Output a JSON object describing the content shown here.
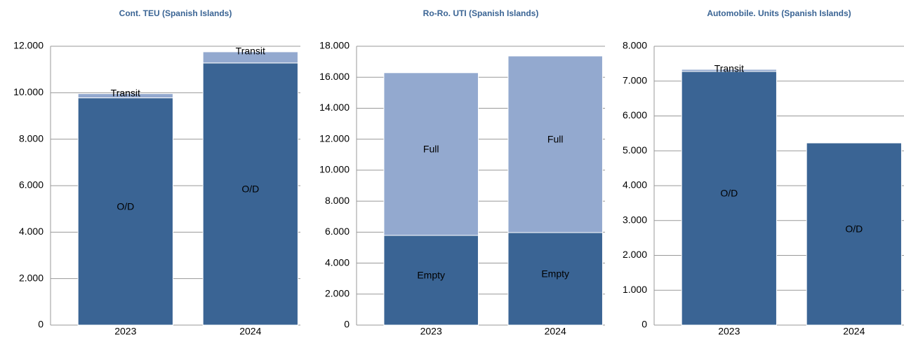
{
  "chart_data": [
    {
      "type": "bar",
      "stacked": true,
      "title": "Cont. TEU (Spanish Islands)",
      "categories": [
        "2023",
        "2024"
      ],
      "series": [
        {
          "name": "O/D",
          "color": "#3a6494",
          "values": [
            9780,
            11280
          ]
        },
        {
          "name": "Transit",
          "color": "#93a9cf",
          "values": [
            180,
            480
          ]
        }
      ],
      "ylim": [
        0,
        12000
      ],
      "yticks": [
        0,
        {
          "value": 2000,
          "label": "2.000"
        },
        {
          "value": 4000,
          "label": "4.000"
        },
        {
          "value": 6000,
          "label": "6.000"
        },
        {
          "value": 8000,
          "label": "8.000"
        },
        {
          "value": 10000,
          "label": "10.000"
        },
        {
          "value": 12000,
          "label": "12.000"
        }
      ],
      "grid": true
    },
    {
      "type": "bar",
      "stacked": true,
      "title": "Ro-Ro. UTI (Spanish Islands)",
      "categories": [
        "2023",
        "2024"
      ],
      "series": [
        {
          "name": "Empty",
          "color": "#3a6494",
          "values": [
            5790,
            5970
          ]
        },
        {
          "name": "Full",
          "color": "#93a9cf",
          "values": [
            10500,
            11400
          ]
        }
      ],
      "ylim": [
        0,
        18000
      ],
      "yticks": [
        0,
        {
          "value": 2000,
          "label": "2.000"
        },
        {
          "value": 4000,
          "label": "4.000"
        },
        {
          "value": 6000,
          "label": "6.000"
        },
        {
          "value": 8000,
          "label": "8.000"
        },
        {
          "value": 10000,
          "label": "10.000"
        },
        {
          "value": 12000,
          "label": "12.000"
        },
        {
          "value": 14000,
          "label": "14.000"
        },
        {
          "value": 16000,
          "label": "16.000"
        },
        {
          "value": 18000,
          "label": "18.000"
        }
      ],
      "grid": true
    },
    {
      "type": "bar",
      "stacked": true,
      "title": "Automobile. Units (Spanish Islands)",
      "categories": [
        "2023",
        "2024"
      ],
      "series": [
        {
          "name": "O/D",
          "color": "#3a6494",
          "values": [
            7276,
            5226
          ]
        },
        {
          "name": "Transit",
          "color": "#93a9cf",
          "values": [
            60,
            null
          ]
        }
      ],
      "ylim": [
        0,
        8000
      ],
      "yticks": [
        0,
        {
          "value": 1000,
          "label": "1.000"
        },
        {
          "value": 2000,
          "label": "2.000"
        },
        {
          "value": 3000,
          "label": "3.000"
        },
        {
          "value": 4000,
          "label": "4.000"
        },
        {
          "value": 5000,
          "label": "5.000"
        },
        {
          "value": 6000,
          "label": "6.000"
        },
        {
          "value": 7000,
          "label": "7.000"
        },
        {
          "value": 8000,
          "label": "8.000"
        }
      ],
      "grid": true
    }
  ]
}
